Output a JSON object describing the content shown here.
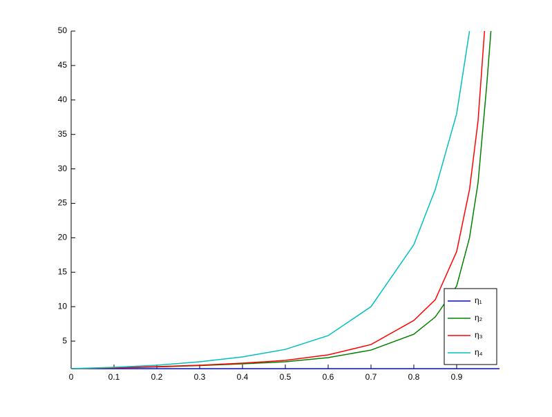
{
  "chart_data": {
    "type": "line",
    "xlim": [
      0,
      1
    ],
    "xticks": [
      0,
      0.1,
      0.2,
      0.3,
      0.4,
      0.5,
      0.6,
      0.7,
      0.8,
      0.9
    ],
    "ylim": [
      1,
      50
    ],
    "yticks": [
      5,
      10,
      15,
      20,
      25,
      30,
      35,
      40,
      45,
      50
    ],
    "legend": "lower right",
    "series": [
      {
        "name": "η₁",
        "color": "#0000ff",
        "x": [
          0,
          1
        ],
        "values": [
          1,
          1
        ]
      },
      {
        "name": "η₂",
        "color": "#008000",
        "x": [
          0,
          0.1,
          0.2,
          0.3,
          0.4,
          0.5,
          0.6,
          0.7,
          0.8,
          0.85,
          0.9,
          0.93,
          0.95,
          0.97,
          0.98
        ],
        "values": [
          1,
          1.1,
          1.25,
          1.45,
          1.7,
          2.0,
          2.6,
          3.7,
          6,
          8.5,
          13,
          20,
          28,
          42,
          50
        ]
      },
      {
        "name": "η₃",
        "color": "#ff0000",
        "x": [
          0,
          0.1,
          0.2,
          0.3,
          0.4,
          0.5,
          0.6,
          0.7,
          0.8,
          0.85,
          0.9,
          0.93,
          0.95,
          0.965
        ],
        "values": [
          1,
          1.12,
          1.3,
          1.5,
          1.8,
          2.2,
          3,
          4.5,
          8,
          11,
          18,
          27,
          37,
          50
        ]
      },
      {
        "name": "η₄",
        "color": "#00bfbf",
        "x": [
          0,
          0.1,
          0.2,
          0.3,
          0.4,
          0.5,
          0.6,
          0.7,
          0.8,
          0.85,
          0.9,
          0.92,
          0.93
        ],
        "values": [
          1,
          1.2,
          1.5,
          2,
          2.7,
          3.8,
          5.8,
          10,
          19,
          27,
          38,
          46,
          50
        ]
      }
    ]
  }
}
